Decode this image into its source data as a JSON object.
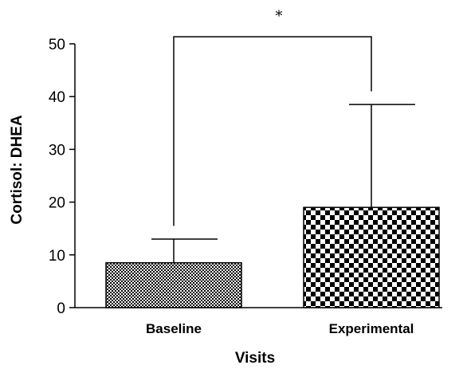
{
  "chart_data": {
    "type": "bar",
    "categories": [
      "Baseline",
      "Experimental"
    ],
    "values": [
      8.5,
      19
    ],
    "error_upper": [
      13,
      38.5
    ],
    "xlabel": "Visits",
    "ylabel": "Cortisol: DHEA",
    "ylim": [
      0,
      50
    ],
    "yticks": [
      0,
      10,
      20,
      30,
      40,
      50
    ],
    "grid": false,
    "patterns": [
      "fine-checker",
      "coarse-checker"
    ],
    "significance": {
      "between": [
        "Baseline",
        "Experimental"
      ],
      "label": "*",
      "level": 51.5
    }
  }
}
